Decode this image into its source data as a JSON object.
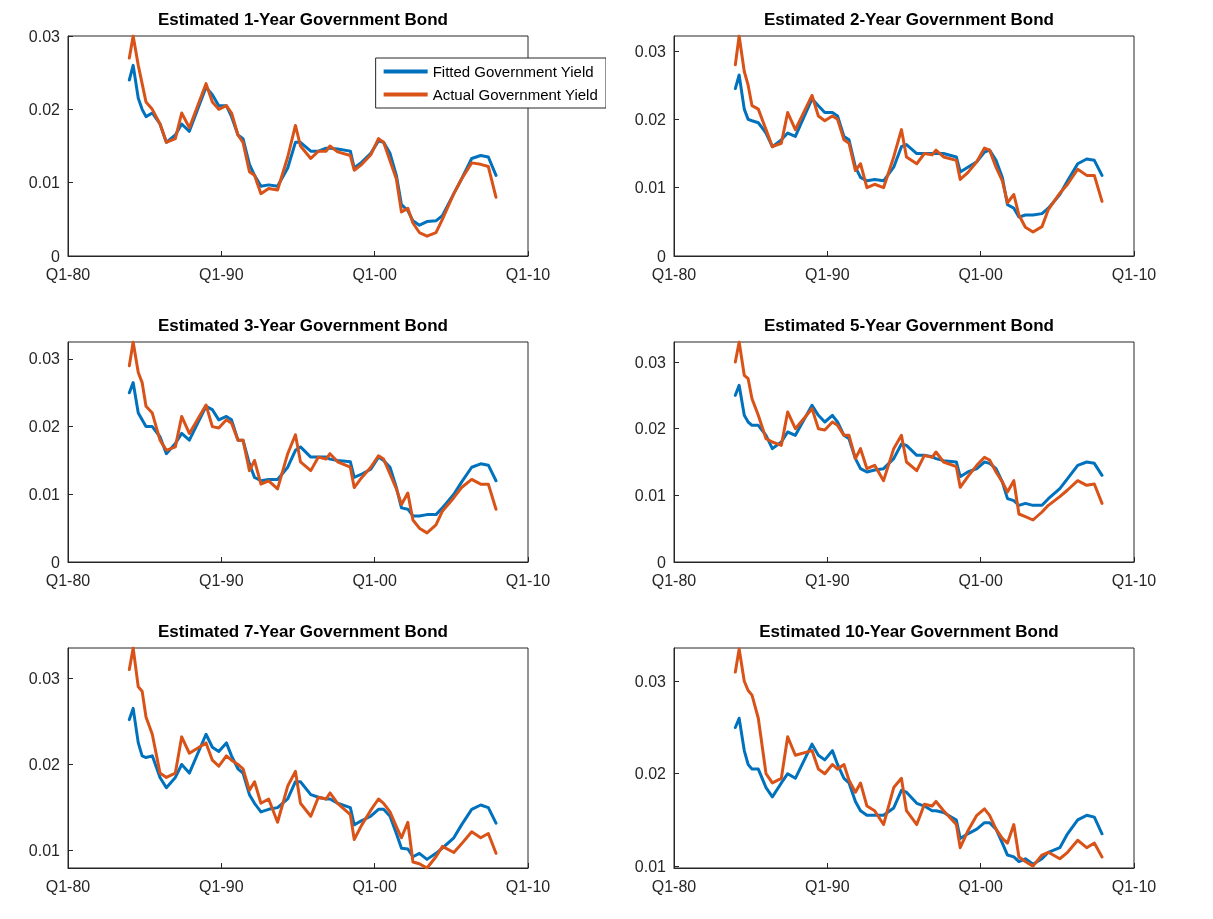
{
  "chart_data": [
    {
      "type": "line",
      "title": "Estimated 1-Year Government Bond",
      "legend": "top right",
      "grid": false,
      "xlim": [
        "1980-01",
        "2010-01"
      ],
      "xticks": [
        {
          "value": "1980-01",
          "label": "Q1-80"
        },
        {
          "value": "1990-01",
          "label": "Q1-90"
        },
        {
          "value": "2000-01",
          "label": "Q1-00"
        },
        {
          "value": "2010-01",
          "label": "Q1-10"
        }
      ],
      "ylim": [
        0,
        0.03
      ],
      "yticks": [
        0,
        0.01,
        0.02,
        0.03
      ],
      "x": [
        "1984-01",
        "1984-04",
        "1984-08",
        "1984-11",
        "1985-02",
        "1985-07",
        "1986-01",
        "1986-06",
        "1987-01",
        "1987-06",
        "1987-12",
        "1989-01",
        "1989-06",
        "1989-11",
        "1990-05",
        "1990-09",
        "1991-02",
        "1991-06",
        "1991-11",
        "1992-03",
        "1992-08",
        "1993-02",
        "1993-09",
        "1994-05",
        "1994-11",
        "1995-03",
        "1995-11",
        "1996-05",
        "1996-11",
        "1997-02",
        "1997-08",
        "1998-06",
        "1998-09",
        "1999-03",
        "1999-10",
        "2000-04",
        "2000-08",
        "2001-01",
        "2001-06",
        "2001-10",
        "2002-03",
        "2002-07",
        "2002-12",
        "2003-06",
        "2004-01",
        "2004-06",
        "2005-03",
        "2005-09",
        "2006-05",
        "2006-12",
        "2007-06",
        "2007-12"
      ],
      "series": [
        {
          "name": "Fitted Government Yield",
          "color": "#0072bd",
          "values": [
            0.024,
            0.026,
            0.0215,
            0.02,
            0.019,
            0.0195,
            0.018,
            0.0155,
            0.0165,
            0.018,
            0.017,
            0.023,
            0.022,
            0.0205,
            0.0205,
            0.019,
            0.0165,
            0.016,
            0.0125,
            0.011,
            0.0095,
            0.0097,
            0.0095,
            0.012,
            0.0155,
            0.0155,
            0.0143,
            0.0143,
            0.0147,
            0.0147,
            0.0146,
            0.0143,
            0.012,
            0.0128,
            0.014,
            0.0157,
            0.0155,
            0.014,
            0.011,
            0.007,
            0.0062,
            0.0048,
            0.0042,
            0.0047,
            0.0048,
            0.0055,
            0.0085,
            0.0105,
            0.0133,
            0.0137,
            0.0135,
            0.011
          ]
        },
        {
          "name": "Actual Government Yield",
          "color": "#d95319",
          "values": [
            0.027,
            0.03,
            0.026,
            0.0235,
            0.021,
            0.02,
            0.018,
            0.0155,
            0.016,
            0.0195,
            0.0175,
            0.0235,
            0.021,
            0.02,
            0.0205,
            0.0195,
            0.0165,
            0.0155,
            0.0115,
            0.011,
            0.0085,
            0.0092,
            0.009,
            0.0135,
            0.0178,
            0.015,
            0.0133,
            0.0143,
            0.0143,
            0.015,
            0.0142,
            0.0137,
            0.0117,
            0.0125,
            0.0138,
            0.016,
            0.0155,
            0.013,
            0.0105,
            0.006,
            0.0065,
            0.0045,
            0.0032,
            0.0027,
            0.0032,
            0.005,
            0.0085,
            0.0105,
            0.0127,
            0.0125,
            0.0122,
            0.008
          ]
        }
      ]
    },
    {
      "type": "line",
      "title": "Estimated 2-Year Government Bond",
      "grid": false,
      "xlim": [
        "1980-01",
        "2010-01"
      ],
      "xticks": [
        {
          "value": "1980-01",
          "label": "Q1-80"
        },
        {
          "value": "1990-01",
          "label": "Q1-90"
        },
        {
          "value": "2000-01",
          "label": "Q1-00"
        },
        {
          "value": "2010-01",
          "label": "Q1-10"
        }
      ],
      "ylim": [
        0,
        0.0322
      ],
      "yticks": [
        0,
        0.01,
        0.02,
        0.03
      ],
      "x": [
        "1984-01",
        "1984-04",
        "1984-08",
        "1984-11",
        "1985-02",
        "1985-07",
        "1986-01",
        "1986-06",
        "1987-01",
        "1987-06",
        "1987-12",
        "1989-01",
        "1989-06",
        "1989-11",
        "1990-05",
        "1990-09",
        "1991-02",
        "1991-06",
        "1991-11",
        "1992-03",
        "1992-08",
        "1993-02",
        "1993-09",
        "1994-05",
        "1994-11",
        "1995-03",
        "1995-11",
        "1996-05",
        "1996-11",
        "1997-02",
        "1997-08",
        "1998-06",
        "1998-09",
        "1999-03",
        "1999-10",
        "2000-04",
        "2000-08",
        "2001-01",
        "2001-06",
        "2001-10",
        "2002-03",
        "2002-07",
        "2002-12",
        "2003-06",
        "2004-01",
        "2004-06",
        "2005-03",
        "2005-09",
        "2006-05",
        "2006-12",
        "2007-06",
        "2007-12"
      ],
      "series": [
        {
          "color": "#0072bd",
          "values": [
            0.0245,
            0.0265,
            0.0215,
            0.02,
            0.0198,
            0.0195,
            0.018,
            0.016,
            0.017,
            0.018,
            0.0175,
            0.023,
            0.022,
            0.021,
            0.021,
            0.0205,
            0.0175,
            0.017,
            0.013,
            0.0115,
            0.011,
            0.0112,
            0.011,
            0.013,
            0.016,
            0.0163,
            0.015,
            0.015,
            0.015,
            0.015,
            0.015,
            0.0145,
            0.0123,
            0.013,
            0.0138,
            0.0152,
            0.0155,
            0.014,
            0.0115,
            0.0075,
            0.007,
            0.0057,
            0.006,
            0.006,
            0.0062,
            0.007,
            0.009,
            0.011,
            0.0135,
            0.0142,
            0.014,
            0.0118
          ]
        },
        {
          "color": "#d95319",
          "values": [
            0.028,
            0.0322,
            0.027,
            0.025,
            0.022,
            0.0215,
            0.0185,
            0.016,
            0.0165,
            0.021,
            0.0185,
            0.0235,
            0.0205,
            0.0198,
            0.0205,
            0.02,
            0.017,
            0.0165,
            0.0125,
            0.0135,
            0.01,
            0.0105,
            0.01,
            0.0145,
            0.0185,
            0.0145,
            0.0135,
            0.015,
            0.0148,
            0.0155,
            0.0145,
            0.014,
            0.0112,
            0.0122,
            0.0138,
            0.0158,
            0.0155,
            0.013,
            0.011,
            0.0078,
            0.009,
            0.006,
            0.0042,
            0.0035,
            0.0043,
            0.0068,
            0.0092,
            0.0105,
            0.0127,
            0.0118,
            0.0118,
            0.008
          ]
        }
      ]
    },
    {
      "type": "line",
      "title": "Estimated 3-Year Government Bond",
      "grid": false,
      "xlim": [
        "1980-01",
        "2010-01"
      ],
      "xticks": [
        {
          "value": "1980-01",
          "label": "Q1-80"
        },
        {
          "value": "1990-01",
          "label": "Q1-90"
        },
        {
          "value": "2000-01",
          "label": "Q1-00"
        },
        {
          "value": "2010-01",
          "label": "Q1-10"
        }
      ],
      "ylim": [
        0,
        0.0325
      ],
      "yticks": [
        0,
        0.01,
        0.02,
        0.03
      ],
      "x": [
        "1984-01",
        "1984-04",
        "1984-08",
        "1984-11",
        "1985-02",
        "1985-07",
        "1986-01",
        "1986-06",
        "1987-01",
        "1987-06",
        "1987-12",
        "1989-01",
        "1989-06",
        "1989-11",
        "1990-05",
        "1990-09",
        "1991-02",
        "1991-06",
        "1991-11",
        "1992-03",
        "1992-08",
        "1993-02",
        "1993-09",
        "1994-05",
        "1994-11",
        "1995-03",
        "1995-11",
        "1996-05",
        "1996-11",
        "1997-02",
        "1997-08",
        "1998-06",
        "1998-09",
        "1999-03",
        "1999-10",
        "2000-04",
        "2000-08",
        "2001-01",
        "2001-06",
        "2001-10",
        "2002-03",
        "2002-07",
        "2002-12",
        "2003-06",
        "2004-01",
        "2004-06",
        "2005-03",
        "2005-09",
        "2006-05",
        "2006-12",
        "2007-06",
        "2007-12"
      ],
      "series": [
        {
          "color": "#0072bd",
          "values": [
            0.025,
            0.0265,
            0.022,
            0.021,
            0.02,
            0.02,
            0.0185,
            0.016,
            0.0175,
            0.019,
            0.018,
            0.023,
            0.0225,
            0.021,
            0.0215,
            0.021,
            0.018,
            0.018,
            0.0145,
            0.0125,
            0.012,
            0.0122,
            0.0122,
            0.014,
            0.0165,
            0.017,
            0.0155,
            0.0155,
            0.0155,
            0.0152,
            0.015,
            0.0148,
            0.0125,
            0.013,
            0.0137,
            0.0155,
            0.015,
            0.014,
            0.011,
            0.008,
            0.0078,
            0.0068,
            0.0068,
            0.007,
            0.007,
            0.008,
            0.01,
            0.0118,
            0.014,
            0.0145,
            0.0143,
            0.012
          ]
        },
        {
          "color": "#d95319",
          "values": [
            0.029,
            0.0325,
            0.028,
            0.0265,
            0.023,
            0.022,
            0.018,
            0.0165,
            0.017,
            0.0215,
            0.019,
            0.0232,
            0.02,
            0.0198,
            0.021,
            0.0205,
            0.018,
            0.018,
            0.0135,
            0.015,
            0.0115,
            0.012,
            0.0108,
            0.016,
            0.0188,
            0.0148,
            0.0135,
            0.0155,
            0.0152,
            0.016,
            0.0148,
            0.014,
            0.011,
            0.0125,
            0.014,
            0.0157,
            0.0152,
            0.013,
            0.0108,
            0.0085,
            0.0102,
            0.0062,
            0.005,
            0.0043,
            0.0055,
            0.0075,
            0.0095,
            0.011,
            0.0122,
            0.0115,
            0.0115,
            0.0078
          ]
        }
      ]
    },
    {
      "type": "line",
      "title": "Estimated 5-Year Government Bond",
      "grid": false,
      "xlim": [
        "1980-01",
        "2010-01"
      ],
      "xticks": [
        {
          "value": "1980-01",
          "label": "Q1-80"
        },
        {
          "value": "1990-01",
          "label": "Q1-90"
        },
        {
          "value": "2000-01",
          "label": "Q1-00"
        },
        {
          "value": "2010-01",
          "label": "Q1-10"
        }
      ],
      "ylim": [
        0,
        0.033
      ],
      "yticks": [
        0,
        0.01,
        0.02,
        0.03
      ],
      "x": [
        "1984-01",
        "1984-04",
        "1984-08",
        "1984-11",
        "1985-02",
        "1985-07",
        "1986-01",
        "1986-06",
        "1987-01",
        "1987-06",
        "1987-12",
        "1989-01",
        "1989-06",
        "1989-11",
        "1990-05",
        "1990-09",
        "1991-02",
        "1991-06",
        "1991-11",
        "1992-03",
        "1992-08",
        "1993-02",
        "1993-09",
        "1994-05",
        "1994-11",
        "1995-03",
        "1995-11",
        "1996-05",
        "1996-11",
        "1997-02",
        "1997-08",
        "1998-06",
        "1998-09",
        "1999-03",
        "1999-10",
        "2000-04",
        "2000-08",
        "2001-01",
        "2001-06",
        "2001-10",
        "2002-03",
        "2002-07",
        "2002-12",
        "2003-06",
        "2004-01",
        "2004-06",
        "2005-03",
        "2005-09",
        "2006-05",
        "2006-12",
        "2007-06",
        "2007-12"
      ],
      "series": [
        {
          "color": "#0072bd",
          "values": [
            0.025,
            0.0265,
            0.022,
            0.021,
            0.0205,
            0.0205,
            0.019,
            0.017,
            0.018,
            0.0195,
            0.019,
            0.0235,
            0.022,
            0.021,
            0.022,
            0.021,
            0.019,
            0.0185,
            0.0155,
            0.014,
            0.0135,
            0.0138,
            0.014,
            0.0155,
            0.0177,
            0.0175,
            0.016,
            0.016,
            0.0158,
            0.0155,
            0.0152,
            0.015,
            0.0128,
            0.0135,
            0.014,
            0.015,
            0.0148,
            0.014,
            0.012,
            0.0095,
            0.0092,
            0.0085,
            0.0088,
            0.0085,
            0.0085,
            0.0095,
            0.011,
            0.0125,
            0.0145,
            0.015,
            0.0148,
            0.013
          ]
        },
        {
          "color": "#d95319",
          "values": [
            0.03,
            0.033,
            0.028,
            0.0275,
            0.0245,
            0.022,
            0.0185,
            0.018,
            0.0175,
            0.0225,
            0.02,
            0.023,
            0.02,
            0.0198,
            0.021,
            0.0205,
            0.019,
            0.019,
            0.0155,
            0.017,
            0.014,
            0.0145,
            0.0122,
            0.017,
            0.019,
            0.015,
            0.0137,
            0.016,
            0.0157,
            0.0165,
            0.015,
            0.0143,
            0.0112,
            0.0128,
            0.0145,
            0.0157,
            0.0153,
            0.0135,
            0.012,
            0.0105,
            0.0122,
            0.0072,
            0.0068,
            0.0063,
            0.0075,
            0.0085,
            0.0098,
            0.0108,
            0.0122,
            0.0115,
            0.0117,
            0.0088
          ]
        }
      ]
    },
    {
      "type": "line",
      "title": "Estimated 7-Year Government Bond",
      "grid": false,
      "xlim": [
        "1980-01",
        "2010-01"
      ],
      "xticks": [
        {
          "value": "1980-01",
          "label": "Q1-80"
        },
        {
          "value": "1990-01",
          "label": "Q1-90"
        },
        {
          "value": "2000-01",
          "label": "Q1-00"
        },
        {
          "value": "2010-01",
          "label": "Q1-10"
        }
      ],
      "ylim": [
        0.008,
        0.0335
      ],
      "yticks": [
        0.01,
        0.02,
        0.03
      ],
      "x": [
        "1984-01",
        "1984-04",
        "1984-08",
        "1984-11",
        "1985-02",
        "1985-07",
        "1986-01",
        "1986-06",
        "1987-01",
        "1987-06",
        "1987-12",
        "1989-01",
        "1989-06",
        "1989-11",
        "1990-05",
        "1990-09",
        "1991-02",
        "1991-06",
        "1991-11",
        "1992-03",
        "1992-08",
        "1993-02",
        "1993-09",
        "1994-05",
        "1994-11",
        "1995-03",
        "1995-11",
        "1996-05",
        "1996-11",
        "1997-02",
        "1997-08",
        "1998-06",
        "1998-09",
        "1999-03",
        "1999-10",
        "2000-04",
        "2000-08",
        "2001-01",
        "2001-06",
        "2001-10",
        "2002-03",
        "2002-07",
        "2002-12",
        "2003-06",
        "2004-01",
        "2004-06",
        "2005-03",
        "2005-09",
        "2006-05",
        "2006-12",
        "2007-06",
        "2007-12"
      ],
      "series": [
        {
          "color": "#0072bd",
          "values": [
            0.0252,
            0.0265,
            0.0225,
            0.021,
            0.0208,
            0.021,
            0.0185,
            0.0173,
            0.0185,
            0.02,
            0.019,
            0.0235,
            0.022,
            0.0215,
            0.0225,
            0.021,
            0.0195,
            0.019,
            0.0165,
            0.0155,
            0.0145,
            0.0148,
            0.015,
            0.016,
            0.018,
            0.018,
            0.0165,
            0.0162,
            0.016,
            0.016,
            0.0155,
            0.015,
            0.013,
            0.0135,
            0.014,
            0.0148,
            0.0148,
            0.014,
            0.012,
            0.0103,
            0.0102,
            0.0093,
            0.0097,
            0.009,
            0.0097,
            0.0103,
            0.0115,
            0.013,
            0.0148,
            0.0153,
            0.015,
            0.0132
          ]
        },
        {
          "color": "#d95319",
          "values": [
            0.031,
            0.0335,
            0.029,
            0.0285,
            0.0255,
            0.0235,
            0.019,
            0.0185,
            0.019,
            0.0232,
            0.0213,
            0.0225,
            0.0205,
            0.0198,
            0.021,
            0.0205,
            0.02,
            0.0195,
            0.017,
            0.018,
            0.0155,
            0.016,
            0.0133,
            0.0175,
            0.0192,
            0.0155,
            0.014,
            0.0162,
            0.016,
            0.0167,
            0.0155,
            0.0142,
            0.0113,
            0.013,
            0.0147,
            0.016,
            0.0155,
            0.0145,
            0.0128,
            0.0115,
            0.0133,
            0.0087,
            0.0085,
            0.008,
            0.0093,
            0.0105,
            0.0098,
            0.0108,
            0.0122,
            0.0115,
            0.012,
            0.0097
          ]
        }
      ]
    },
    {
      "type": "line",
      "title": "Estimated 10-Year Government Bond",
      "grid": false,
      "xlim": [
        "1980-01",
        "2010-01"
      ],
      "xticks": [
        {
          "value": "1980-01",
          "label": "Q1-80"
        },
        {
          "value": "1990-01",
          "label": "Q1-90"
        },
        {
          "value": "2000-01",
          "label": "Q1-00"
        },
        {
          "value": "2010-01",
          "label": "Q1-10"
        }
      ],
      "ylim": [
        0.0098,
        0.0336
      ],
      "yticks": [
        0.01,
        0.02,
        0.03
      ],
      "x": [
        "1984-01",
        "1984-04",
        "1984-08",
        "1984-11",
        "1985-02",
        "1985-07",
        "1986-01",
        "1986-06",
        "1987-01",
        "1987-06",
        "1987-12",
        "1989-01",
        "1989-06",
        "1989-11",
        "1990-05",
        "1990-09",
        "1991-02",
        "1991-06",
        "1991-11",
        "1992-03",
        "1992-08",
        "1993-02",
        "1993-09",
        "1994-05",
        "1994-11",
        "1995-03",
        "1995-11",
        "1996-05",
        "1996-11",
        "1997-02",
        "1997-08",
        "1998-06",
        "1998-09",
        "1999-03",
        "1999-10",
        "2000-04",
        "2000-08",
        "2001-01",
        "2001-06",
        "2001-10",
        "2002-03",
        "2002-07",
        "2002-12",
        "2003-06",
        "2004-01",
        "2004-06",
        "2005-03",
        "2005-09",
        "2006-05",
        "2006-12",
        "2007-06",
        "2007-12"
      ],
      "series": [
        {
          "color": "#0072bd",
          "values": [
            0.025,
            0.026,
            0.0225,
            0.021,
            0.0205,
            0.0205,
            0.0185,
            0.0175,
            0.019,
            0.02,
            0.0195,
            0.0232,
            0.022,
            0.0215,
            0.0225,
            0.021,
            0.0195,
            0.019,
            0.017,
            0.016,
            0.0155,
            0.0155,
            0.0155,
            0.0163,
            0.0182,
            0.018,
            0.0168,
            0.0165,
            0.016,
            0.016,
            0.0158,
            0.015,
            0.013,
            0.0135,
            0.014,
            0.0147,
            0.0147,
            0.014,
            0.0125,
            0.0112,
            0.011,
            0.0105,
            0.0108,
            0.0102,
            0.0108,
            0.0115,
            0.012,
            0.0135,
            0.015,
            0.0155,
            0.0153,
            0.0135
          ]
        },
        {
          "color": "#d95319",
          "values": [
            0.031,
            0.0335,
            0.03,
            0.029,
            0.0285,
            0.026,
            0.02,
            0.019,
            0.0195,
            0.024,
            0.022,
            0.0225,
            0.0205,
            0.02,
            0.021,
            0.0205,
            0.021,
            0.0193,
            0.018,
            0.019,
            0.0165,
            0.016,
            0.0145,
            0.0185,
            0.0195,
            0.016,
            0.0145,
            0.0167,
            0.0165,
            0.017,
            0.016,
            0.0145,
            0.012,
            0.0138,
            0.0155,
            0.0162,
            0.0155,
            0.014,
            0.013,
            0.0125,
            0.0145,
            0.011,
            0.0105,
            0.01,
            0.0112,
            0.0115,
            0.0108,
            0.0115,
            0.0128,
            0.012,
            0.0125,
            0.011
          ]
        }
      ]
    }
  ]
}
